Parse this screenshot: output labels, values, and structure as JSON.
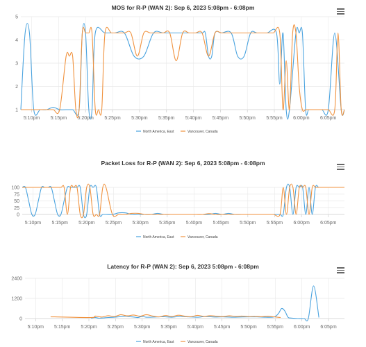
{
  "colors": {
    "series_a": "#4aa3df",
    "series_b": "#f0923e",
    "grid": "#e8e8e8",
    "axis": "#cccccc"
  },
  "icons": {
    "menu": "hamburger-menu-icon"
  },
  "chart_data": [
    {
      "type": "line",
      "title": "MOS for R-P (WAN 2): Sep 6, 2023 5:08pm - 6:08pm",
      "xlabel": "",
      "ylabel": "",
      "xlim": [
        0,
        60
      ],
      "ylim": [
        1,
        5
      ],
      "y_ticks": [
        "1",
        "2",
        "3",
        "4",
        "5"
      ],
      "x_ticks": [
        "5:10pm",
        "5:15pm",
        "5:20pm",
        "5:25pm",
        "5:30pm",
        "5:35pm",
        "5:40pm",
        "5:45pm",
        "5:50pm",
        "5:55pm",
        "6:00pm",
        "6:05pm"
      ],
      "grid": true,
      "legend": "bottom-center",
      "series": [
        {
          "name": "North America, East",
          "x": [
            0,
            0.8,
            1.6,
            2.4,
            3.6,
            4.8,
            6,
            7.2,
            8.4,
            9.6,
            10.8,
            11.4,
            12,
            12.6,
            13.2,
            13.8,
            15.6,
            17.4,
            19.2,
            21,
            22.8,
            24.6,
            26.4,
            28.2,
            30,
            31.8,
            33.6,
            34.2,
            34.8,
            35.4,
            36,
            37.2,
            39,
            40.2,
            41.4,
            42.6,
            43.8,
            45.6,
            47.4,
            48,
            48.6,
            49.2,
            49.8,
            51,
            51.6,
            52.2,
            52.8,
            53.4,
            54.6,
            55.8,
            57,
            58.2,
            59.4,
            60
          ],
          "y": [
            1,
            4.3,
            4.3,
            1,
            1,
            1,
            1.1,
            1,
            1,
            1,
            1,
            4.3,
            4.3,
            1,
            1,
            4.3,
            4.3,
            4.3,
            4.3,
            3.3,
            3.3,
            4.3,
            4.3,
            4.3,
            4.3,
            4.3,
            4.3,
            4.3,
            3.3,
            3.3,
            4.3,
            4.3,
            4.3,
            3.3,
            3.3,
            4.3,
            4.3,
            4.3,
            4.3,
            2.1,
            4.3,
            1,
            1,
            4.3,
            4.3,
            4.3,
            1,
            1,
            1,
            1,
            1,
            4.3,
            1,
            1
          ]
        },
        {
          "name": "Vancouver, Canada",
          "x": [
            0,
            1.2,
            2.4,
            3.6,
            4.8,
            6,
            7.2,
            8.4,
            9,
            9.6,
            10.2,
            10.8,
            11.4,
            12,
            12.6,
            13.2,
            13.8,
            14.4,
            15,
            15.6,
            16.8,
            18,
            19.2,
            20.4,
            21.6,
            22.8,
            24,
            25.2,
            26.4,
            27.6,
            28.8,
            30,
            31.2,
            32.4,
            33.6,
            34.8,
            36,
            37.2,
            38.4,
            39.6,
            40.8,
            42,
            43.2,
            44.4,
            45.6,
            46.8,
            48,
            48.6,
            49.2,
            49.8,
            50.4,
            51,
            51.6,
            52.2,
            52.8,
            53.4,
            54.6,
            55.8,
            57,
            58.2,
            58.8,
            59.4,
            60
          ],
          "y": [
            1,
            1,
            1,
            1,
            1,
            1,
            1,
            3.3,
            3.3,
            3.3,
            1,
            1,
            4.3,
            4.3,
            4.3,
            4.3,
            1,
            1,
            1,
            4.3,
            4.3,
            4.3,
            4.3,
            4.3,
            3.3,
            4.3,
            4.3,
            4.3,
            4.3,
            4.3,
            3.1,
            4.3,
            4.3,
            4.3,
            4.3,
            3.3,
            4.3,
            4.3,
            4.3,
            4.3,
            4.3,
            4.3,
            4.3,
            4.3,
            4.3,
            4.3,
            4.3,
            1,
            3.1,
            1,
            4.3,
            4.3,
            2,
            1,
            1,
            1,
            1,
            1,
            1,
            1,
            4.3,
            1,
            1
          ]
        }
      ]
    },
    {
      "type": "line",
      "title": "Packet Loss for R-P (WAN 2): Sep 6, 2023 5:08pm - 6:08pm",
      "xlabel": "",
      "ylabel": "",
      "xlim": [
        0,
        60
      ],
      "ylim": [
        0,
        100
      ],
      "y_ticks": [
        "0",
        "25",
        "50",
        "75",
        "100"
      ],
      "x_ticks": [
        "5:10pm",
        "5:15pm",
        "5:20pm",
        "5:25pm",
        "5:30pm",
        "5:35pm",
        "5:40pm",
        "5:45pm",
        "5:50pm",
        "5:55pm",
        "6:00pm",
        "6:05pm"
      ],
      "grid": true,
      "legend": "bottom-center",
      "series": [
        {
          "name": "North America, East",
          "x": [
            0,
            0.6,
            1.2,
            1.8,
            2.4,
            3,
            3.6,
            4.2,
            4.8,
            5.4,
            6,
            6.6,
            7.2,
            7.8,
            8.4,
            9,
            9.6,
            10.2,
            10.8,
            11.4,
            12,
            12.6,
            13.2,
            13.8,
            14.4,
            15,
            15.6,
            16.8,
            18,
            19.2,
            20.4,
            21.6,
            22.8,
            24,
            25.2,
            26.4,
            27.6,
            28.8,
            30,
            31.2,
            32.4,
            33.6,
            34.8,
            36,
            37.2,
            38.4,
            39.6,
            40.8,
            42,
            43.2,
            44.4,
            45.6,
            46.8,
            48,
            48.6,
            49.2,
            49.8,
            50.4,
            51,
            51.6,
            52.2,
            52.8,
            53.4,
            54,
            54.6,
            55.2,
            55.8,
            57,
            58.2,
            58.8,
            59.4,
            60
          ],
          "y": [
            100,
            100,
            50,
            0,
            0,
            50,
            100,
            100,
            100,
            100,
            50,
            0,
            0,
            50,
            100,
            100,
            100,
            100,
            100,
            0,
            0,
            100,
            100,
            100,
            0,
            0,
            0,
            0,
            6,
            6,
            0,
            0,
            0,
            0,
            4,
            0,
            0,
            0,
            0,
            0,
            0,
            0,
            0,
            4,
            0,
            4,
            0,
            0,
            0,
            0,
            0,
            0,
            0,
            0,
            0,
            100,
            100,
            0,
            100,
            100,
            100,
            0,
            100,
            0,
            100,
            100,
            100,
            100,
            100,
            100,
            100,
            100
          ]
        },
        {
          "name": "Vancouver, Canada",
          "x": [
            0,
            1.2,
            2.4,
            3.6,
            4.8,
            6,
            7.2,
            7.8,
            8.4,
            9,
            9.6,
            10.2,
            10.8,
            11.4,
            12,
            12.6,
            13.2,
            13.8,
            14.4,
            15,
            15.6,
            16.8,
            18,
            19.2,
            20.4,
            21.6,
            22.8,
            24,
            25.2,
            26.4,
            27.6,
            28.8,
            30,
            31.2,
            32.4,
            33.6,
            34.8,
            36,
            37.2,
            38.4,
            39.6,
            40.8,
            42,
            43.2,
            44.4,
            45.6,
            46.8,
            48,
            48.6,
            49.2,
            49.8,
            50.4,
            51,
            51.6,
            52.2,
            52.8,
            53.4,
            54,
            54.6,
            55.2,
            55.8,
            56.4,
            57,
            58.2,
            59.4,
            60
          ],
          "y": [
            100,
            100,
            100,
            100,
            100,
            100,
            100,
            100,
            0,
            100,
            100,
            100,
            0,
            0,
            100,
            100,
            0,
            0,
            0,
            100,
            100,
            0,
            0,
            0,
            4,
            4,
            0,
            0,
            0,
            0,
            0,
            0,
            0,
            0,
            0,
            0,
            3,
            0,
            0,
            0,
            0,
            0,
            0,
            0,
            0,
            0,
            0,
            0,
            100,
            0,
            100,
            100,
            0,
            100,
            100,
            100,
            0,
            100,
            100,
            100,
            100,
            100,
            100,
            100,
            100,
            100
          ]
        }
      ]
    },
    {
      "type": "line",
      "title": "Latency for R-P (WAN 2): Sep 6, 2023 5:08pm - 6:08pm",
      "xlabel": "",
      "ylabel": "",
      "xlim": [
        0,
        60
      ],
      "ylim": [
        0,
        2400
      ],
      "y_ticks": [
        "0",
        "1200",
        "2400"
      ],
      "x_ticks": [
        "5:10pm",
        "5:15pm",
        "5:20pm",
        "5:25pm",
        "5:30pm",
        "5:35pm",
        "5:40pm",
        "5:45pm",
        "5:50pm",
        "5:55pm",
        "6:00pm",
        "6:05pm"
      ],
      "grid": true,
      "legend": "bottom-center",
      "series": [
        {
          "name": "North America, East",
          "x": [
            12.4,
            13.2,
            14,
            15.6,
            17.2,
            18.8,
            19.6,
            20.4,
            21.2,
            22,
            22.8,
            24.4,
            26,
            27.6,
            29.2,
            30.8,
            32.4,
            34,
            35.6,
            37.2,
            38.8,
            40.4,
            42,
            43.6,
            45.2,
            46.8,
            47.6,
            48.2,
            48.8,
            49.4,
            50,
            51.2,
            52.4,
            53.2,
            54.2,
            55.2
          ],
          "y": [
            30,
            60,
            20,
            60,
            90,
            140,
            110,
            90,
            60,
            130,
            80,
            90,
            110,
            80,
            130,
            100,
            80,
            120,
            90,
            100,
            80,
            90,
            100,
            100,
            80,
            100,
            300,
            600,
            450,
            80,
            30,
            0,
            0,
            0,
            1950,
            60
          ]
        },
        {
          "name": "Vancouver, Canada",
          "x": [
            5,
            5.6,
            12.4,
            13.2,
            14.4,
            15.6,
            16.8,
            18,
            19.2,
            20.4,
            21.6,
            22.8,
            24,
            25.2,
            26.4,
            27.6,
            28.8,
            30,
            31.2,
            32.4,
            33.6,
            34.8,
            36,
            37.2,
            38.4,
            39.6,
            40.8,
            42,
            43.2,
            44.4,
            45.6,
            46.8,
            48
          ],
          "y": [
            100,
            100,
            60,
            150,
            90,
            170,
            120,
            230,
            160,
            210,
            140,
            230,
            150,
            100,
            180,
            120,
            200,
            140,
            110,
            190,
            130,
            170,
            140,
            120,
            160,
            130,
            150,
            120,
            130,
            110,
            140,
            100,
            60
          ]
        }
      ]
    }
  ]
}
